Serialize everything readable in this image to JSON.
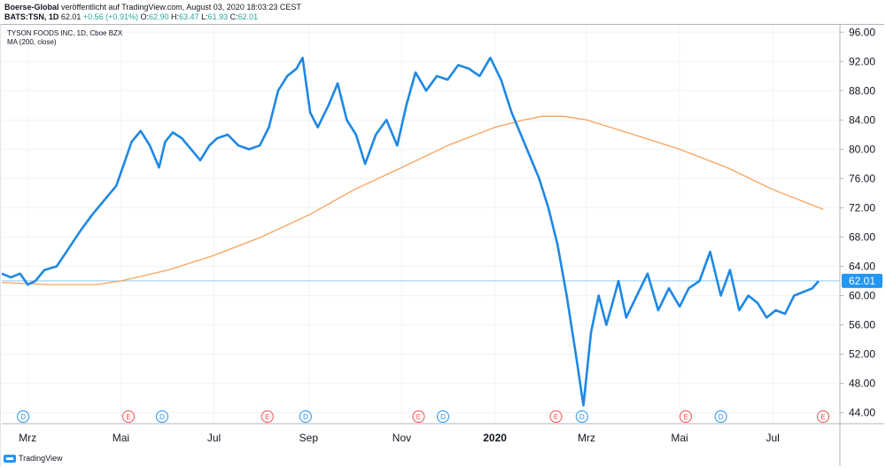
{
  "header": {
    "publisher": "Boerse-Global",
    "published_text": " veröffentlicht auf TradingView.com, August 03, 2020 18:03:23 CEST",
    "symbol": "BATS:TSN, 1D",
    "last": "62.01",
    "change": "+0.56 (+0.91%)",
    "o_label": "O:",
    "o_value": "62.90",
    "h_label": "H:",
    "h_value": "63.47",
    "l_label": "L:",
    "l_value": "61.93",
    "c_label": "C:",
    "c_value": "62.01"
  },
  "legend": {
    "title": "TYSON FOODS INC, 1D, Cboe BZX",
    "ma": "MA (200, close)"
  },
  "footer": {
    "brand": "TradingView"
  },
  "colors": {
    "price_line": "#1e88e5",
    "ma_line": "#f7a35c",
    "last_price_badge": "#2196f3",
    "dividend": "#2196f3",
    "earnings": "#ef5350",
    "grid": "#f0f3fa"
  },
  "chart_data": {
    "type": "line",
    "title": "TYSON FOODS INC, 1D, Cboe BZX",
    "ylim": [
      42.5,
      97
    ],
    "y_ticks": [
      "96.00",
      "92.00",
      "88.00",
      "84.00",
      "80.00",
      "76.00",
      "72.00",
      "68.00",
      "64.00",
      "60.00",
      "56.00",
      "52.00",
      "48.00",
      "44.00"
    ],
    "x_ticks": [
      {
        "label": "Mrz",
        "date": "2019-03-01"
      },
      {
        "label": "Mai",
        "date": "2019-05-01"
      },
      {
        "label": "Jul",
        "date": "2019-07-01"
      },
      {
        "label": "Sep",
        "date": "2019-09-01"
      },
      {
        "label": "Nov",
        "date": "2019-11-01"
      },
      {
        "label": "2020",
        "date": "2020-01-01"
      },
      {
        "label": "Mrz",
        "date": "2020-03-01"
      },
      {
        "label": "Mai",
        "date": "2020-05-01"
      },
      {
        "label": "Jul",
        "date": "2020-07-01"
      }
    ],
    "x_range": [
      "2019-02-12",
      "2020-08-14"
    ],
    "last_price": {
      "value": 62.01,
      "label": "62.01"
    },
    "grid": true,
    "series": [
      {
        "name": "TSN",
        "x": [
          "2019-02-12",
          "2019-02-18",
          "2019-02-24",
          "2019-03-01",
          "2019-03-06",
          "2019-03-12",
          "2019-03-20",
          "2019-03-28",
          "2019-04-05",
          "2019-04-12",
          "2019-04-20",
          "2019-04-28",
          "2019-05-03",
          "2019-05-08",
          "2019-05-14",
          "2019-05-20",
          "2019-05-26",
          "2019-05-30",
          "2019-06-04",
          "2019-06-10",
          "2019-06-16",
          "2019-06-22",
          "2019-06-28",
          "2019-07-03",
          "2019-07-10",
          "2019-07-17",
          "2019-07-24",
          "2019-07-31",
          "2019-08-06",
          "2019-08-12",
          "2019-08-18",
          "2019-08-24",
          "2019-08-28",
          "2019-09-02",
          "2019-09-07",
          "2019-09-14",
          "2019-09-20",
          "2019-09-26",
          "2019-10-02",
          "2019-10-08",
          "2019-10-15",
          "2019-10-22",
          "2019-10-29",
          "2019-11-04",
          "2019-11-10",
          "2019-11-17",
          "2019-11-24",
          "2019-12-01",
          "2019-12-08",
          "2019-12-15",
          "2019-12-22",
          "2019-12-29",
          "2020-01-05",
          "2020-01-12",
          "2020-01-18",
          "2020-01-24",
          "2020-01-30",
          "2020-02-05",
          "2020-02-11",
          "2020-02-17",
          "2020-02-23",
          "2020-02-28",
          "2020-03-04",
          "2020-03-09",
          "2020-03-14",
          "2020-03-18",
          "2020-03-22",
          "2020-03-27",
          "2020-04-03",
          "2020-04-10",
          "2020-04-17",
          "2020-04-24",
          "2020-05-01",
          "2020-05-07",
          "2020-05-14",
          "2020-05-21",
          "2020-05-28",
          "2020-06-03",
          "2020-06-09",
          "2020-06-15",
          "2020-06-21",
          "2020-06-27",
          "2020-07-03",
          "2020-07-09",
          "2020-07-15",
          "2020-07-21",
          "2020-07-27",
          "2020-07-31"
        ],
        "values": [
          63.0,
          62.5,
          63.0,
          61.5,
          62.0,
          63.5,
          64.0,
          66.5,
          69.0,
          71.0,
          73.0,
          75.0,
          78.0,
          81.0,
          82.5,
          80.5,
          77.5,
          81.0,
          82.3,
          81.5,
          80.0,
          78.5,
          80.5,
          81.5,
          82.0,
          80.5,
          80.0,
          80.5,
          83.0,
          88.0,
          90.0,
          91.0,
          92.5,
          85.0,
          83.0,
          86.0,
          89.0,
          84.0,
          82.0,
          78.0,
          82.0,
          84.0,
          80.5,
          86.0,
          90.5,
          88.0,
          90.0,
          89.5,
          91.5,
          91.0,
          90.0,
          92.5,
          89.5,
          85.0,
          82.0,
          79.0,
          76.0,
          72.0,
          67.0,
          60.0,
          52.0,
          45.0,
          55.0,
          60.0,
          56.0,
          59.0,
          62.0,
          57.0,
          60.0,
          63.0,
          58.0,
          61.0,
          58.5,
          61.0,
          62.0,
          66.0,
          60.0,
          63.5,
          58.0,
          60.0,
          59.0,
          57.0,
          58.0,
          57.5,
          60.0,
          60.5,
          61.0,
          62.0
        ]
      },
      {
        "name": "MA (200, close)",
        "x": [
          "2019-02-12",
          "2019-03-15",
          "2019-04-15",
          "2019-05-01",
          "2019-06-01",
          "2019-07-01",
          "2019-08-01",
          "2019-09-01",
          "2019-10-01",
          "2019-11-01",
          "2019-12-01",
          "2020-01-01",
          "2020-01-20",
          "2020-02-01",
          "2020-02-15",
          "2020-03-01",
          "2020-04-01",
          "2020-05-01",
          "2020-06-01",
          "2020-07-01",
          "2020-08-03"
        ],
        "values": [
          61.8,
          61.5,
          61.5,
          62.0,
          63.5,
          65.5,
          68.0,
          71.0,
          74.5,
          77.5,
          80.5,
          83.0,
          84.0,
          84.5,
          84.5,
          84.0,
          82.0,
          80.0,
          77.5,
          74.5,
          71.8
        ]
      }
    ],
    "annotations": [
      {
        "type": "D",
        "date": "2019-02-26"
      },
      {
        "type": "E",
        "date": "2019-05-06"
      },
      {
        "type": "D",
        "date": "2019-05-28"
      },
      {
        "type": "E",
        "date": "2019-08-05"
      },
      {
        "type": "D",
        "date": "2019-08-30"
      },
      {
        "type": "E",
        "date": "2019-11-12"
      },
      {
        "type": "D",
        "date": "2019-11-28"
      },
      {
        "type": "E",
        "date": "2020-02-10"
      },
      {
        "type": "D",
        "date": "2020-02-27"
      },
      {
        "type": "E",
        "date": "2020-05-05"
      },
      {
        "type": "D",
        "date": "2020-05-28"
      },
      {
        "type": "E",
        "date": "2020-08-03"
      }
    ]
  }
}
